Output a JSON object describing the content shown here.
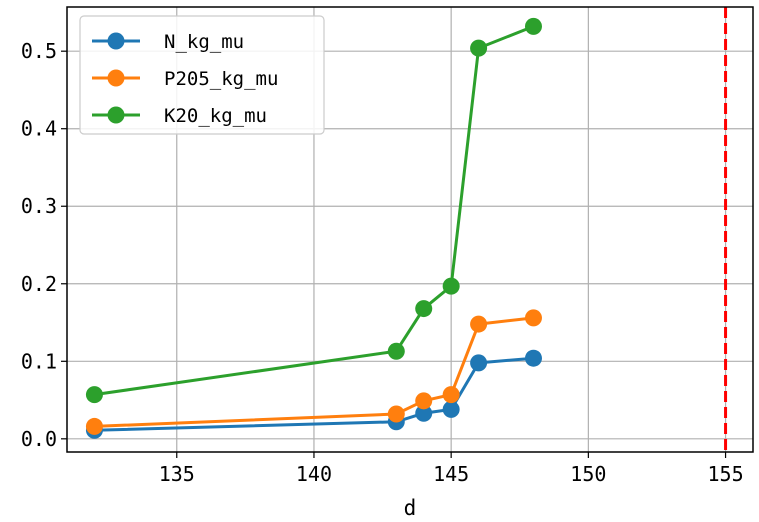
{
  "chart_data": {
    "type": "line",
    "title": "",
    "xlabel": "d",
    "ylabel": "",
    "xlim": [
      131,
      156
    ],
    "ylim": [
      -0.017,
      0.557
    ],
    "x_ticks": [
      135,
      140,
      145,
      150,
      155
    ],
    "y_ticks": [
      0.0,
      0.1,
      0.2,
      0.3,
      0.4,
      0.5
    ],
    "x_tick_labels": [
      "135",
      "140",
      "145",
      "150",
      "155"
    ],
    "y_tick_labels": [
      "0.0",
      "0.1",
      "0.2",
      "0.3",
      "0.4",
      "0.5"
    ],
    "grid": true,
    "legend_position": "top-left",
    "x": [
      132,
      143,
      144,
      145,
      146,
      148
    ],
    "series": [
      {
        "name": "N_kg_mu",
        "color": "#1f77b4",
        "values": [
          0.011,
          0.022,
          0.033,
          0.038,
          0.098,
          0.104
        ]
      },
      {
        "name": "P205_kg_mu",
        "color": "#ff7f0e",
        "values": [
          0.016,
          0.032,
          0.049,
          0.057,
          0.148,
          0.156
        ]
      },
      {
        "name": "K20_kg_mu",
        "color": "#2ca02c",
        "values": [
          0.057,
          0.113,
          0.168,
          0.197,
          0.504,
          0.532
        ]
      }
    ],
    "reference_line": {
      "x": 155,
      "color": "#ff0000",
      "style": "dashed"
    }
  }
}
